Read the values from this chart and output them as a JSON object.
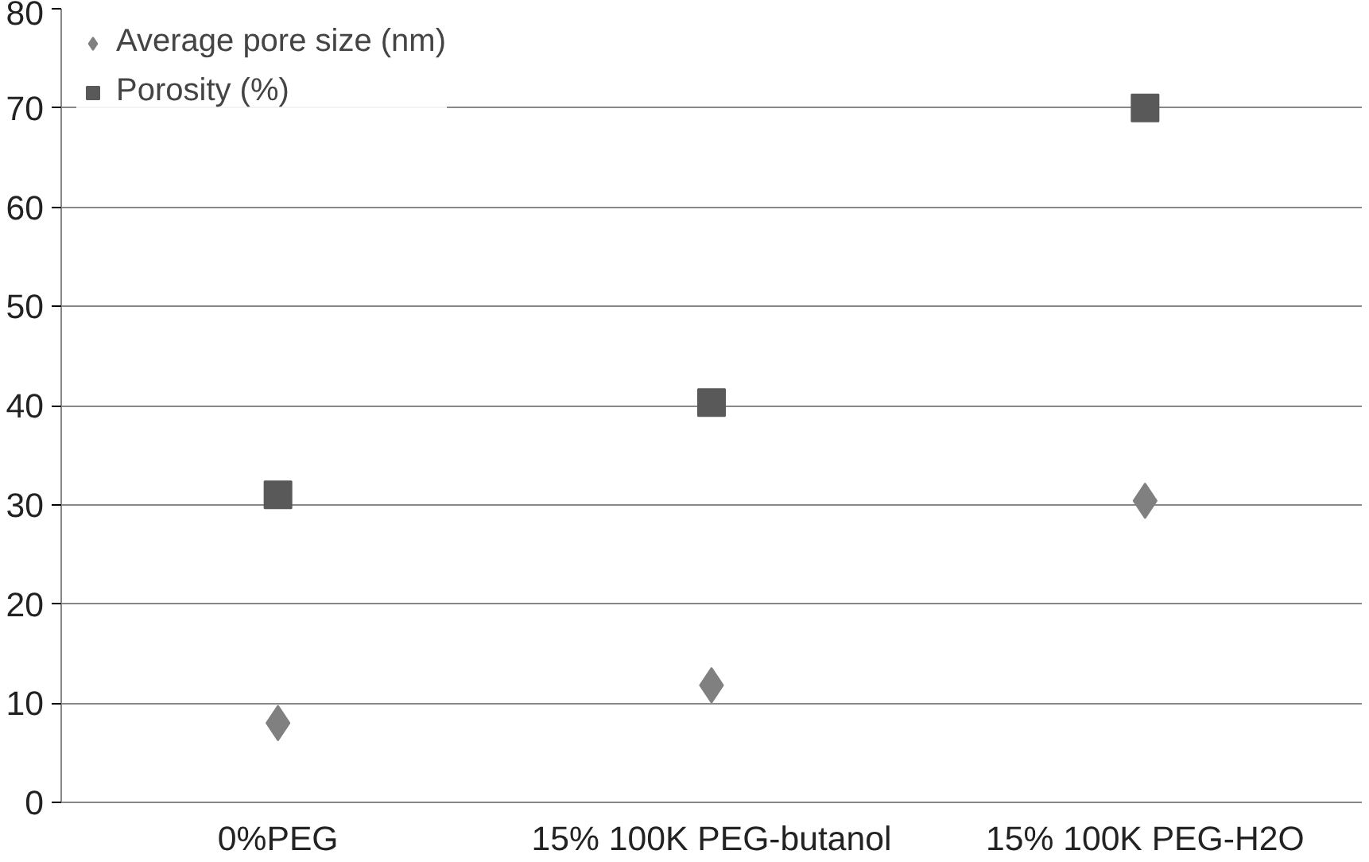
{
  "chart_data": {
    "type": "scatter",
    "categories": [
      "0%PEG",
      "15% 100K PEG-butanol",
      "15% 100K PEG-H2O"
    ],
    "series": [
      {
        "name": "Average pore size (nm)",
        "color": "#808080",
        "marker": "diamond",
        "values": [
          8,
          11.8,
          30.4
        ]
      },
      {
        "name": "Porosity (%)",
        "color": "#595959",
        "marker": "square",
        "values": [
          31,
          40.3,
          70
        ]
      }
    ],
    "ylim": [
      0,
      80
    ],
    "yticks": [
      0,
      10,
      20,
      30,
      40,
      50,
      60,
      70,
      80
    ],
    "grid": "y",
    "legend": "top left"
  }
}
